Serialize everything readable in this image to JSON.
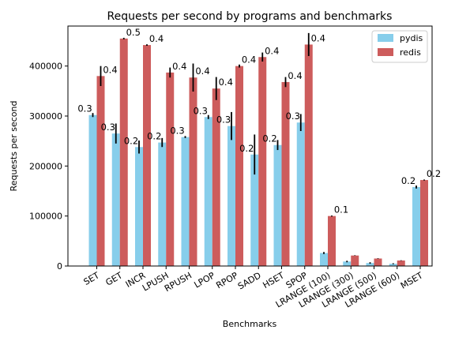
{
  "chart_data": {
    "type": "bar",
    "title": "Requests per second by programs and benchmarks",
    "xlabel": "Benchmarks",
    "ylabel": "Requests per second",
    "ylim": [
      0,
      480000
    ],
    "yticks": [
      0,
      100000,
      200000,
      300000,
      400000
    ],
    "ytick_labels": [
      "0",
      "100000",
      "200000",
      "300000",
      "400000"
    ],
    "grid": false,
    "legend_position": "top-right",
    "categories": [
      "SET",
      "GET",
      "INCR",
      "LPUSH",
      "RPUSH",
      "LPOP",
      "RPOP",
      "SADD",
      "HSET",
      "SPOP",
      "LRANGE (100)",
      "LRANGE (300)",
      "LRANGE (500)",
      "LRANGE (600)",
      "MSET"
    ],
    "series": [
      {
        "name": "pydis",
        "color": "#87ceeb",
        "values": [
          302000,
          265000,
          238000,
          247000,
          258000,
          298000,
          280000,
          223000,
          242000,
          287000,
          26000,
          9000,
          6000,
          4500,
          158000
        ],
        "errors": [
          4000,
          20000,
          13000,
          9000,
          2000,
          4000,
          28000,
          40000,
          10000,
          17000,
          2000,
          1500,
          1500,
          1000,
          3000
        ],
        "labels": [
          "0.3",
          "0.3",
          "0.2",
          "0.2",
          "0.3",
          "0.3",
          "0.3",
          "0.2",
          "0.2",
          "0.3",
          "",
          "",
          "",
          "",
          "0.2"
        ]
      },
      {
        "name": "redis",
        "color": "#cd5c5c",
        "values": [
          380000,
          455000,
          442000,
          387000,
          377000,
          355000,
          400000,
          418000,
          368000,
          443000,
          100000,
          21000,
          15000,
          11000,
          172000
        ],
        "errors": [
          20000,
          1500,
          1500,
          10000,
          28000,
          23000,
          3000,
          9000,
          10000,
          23000,
          1000,
          500,
          500,
          500,
          1000
        ],
        "labels": [
          "0.4",
          "0.5",
          "0.4",
          "0.4",
          "0.4",
          "0.4",
          "0.4",
          "0.4",
          "0.4",
          "0.4",
          "0.1",
          "",
          "",
          "",
          "0.2"
        ]
      }
    ]
  }
}
